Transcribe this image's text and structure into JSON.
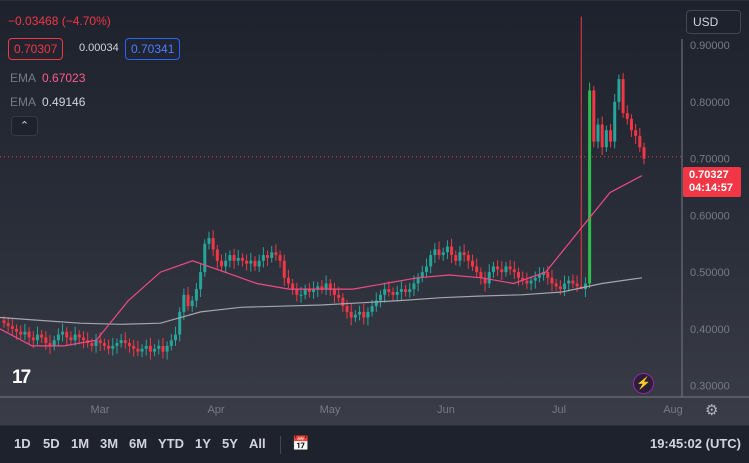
{
  "legend": {
    "change": "−0.03468 (−4.70%)",
    "bid": "0.70307",
    "spread": "0.00034",
    "ask": "0.70341",
    "ema1_label": "EMA",
    "ema1_value": "0.67023",
    "ema2_label": "EMA",
    "ema2_value": "0.49146",
    "collapse_icon": "chevron-up-icon"
  },
  "toolbar": {
    "currency": "USD",
    "ranges": [
      "1D",
      "5D",
      "1M",
      "3M",
      "6M",
      "YTD",
      "1Y",
      "5Y",
      "All"
    ],
    "date_range_icon": "calendar-arrows-icon",
    "clock": "19:45:02 (UTC)"
  },
  "price_badge": {
    "price": "0.70327",
    "countdown": "04:14:57"
  },
  "colors": {
    "up": "#26a69a",
    "up_bright": "#2ebd4e",
    "down": "#f23645",
    "ema_fast": "#f04a86",
    "ema_slow": "#a3a6af"
  },
  "chart_data": {
    "type": "candlestick",
    "yaxis_ticks": [
      "0.90000",
      "0.80000",
      "0.70000",
      "0.60000",
      "0.50000",
      "0.40000",
      "0.30000"
    ],
    "ylim": [
      0.28,
      0.96
    ],
    "xaxis_ticks": [
      "Mar",
      "Apr",
      "May",
      "Jun",
      "Jul",
      "Aug"
    ],
    "last_price": 0.70327,
    "closes": [
      0.41,
      0.405,
      0.4,
      0.395,
      0.39,
      0.395,
      0.385,
      0.38,
      0.39,
      0.385,
      0.375,
      0.37,
      0.38,
      0.39,
      0.395,
      0.385,
      0.38,
      0.39,
      0.385,
      0.38,
      0.375,
      0.37,
      0.38,
      0.375,
      0.37,
      0.365,
      0.37,
      0.375,
      0.38,
      0.375,
      0.37,
      0.365,
      0.36,
      0.365,
      0.37,
      0.36,
      0.365,
      0.37,
      0.36,
      0.37,
      0.38,
      0.39,
      0.43,
      0.46,
      0.44,
      0.45,
      0.47,
      0.5,
      0.55,
      0.56,
      0.54,
      0.52,
      0.51,
      0.52,
      0.53,
      0.52,
      0.525,
      0.52,
      0.515,
      0.52,
      0.51,
      0.52,
      0.53,
      0.525,
      0.535,
      0.53,
      0.52,
      0.49,
      0.48,
      0.47,
      0.46,
      0.46,
      0.47,
      0.465,
      0.47,
      0.475,
      0.47,
      0.48,
      0.47,
      0.46,
      0.455,
      0.44,
      0.43,
      0.42,
      0.425,
      0.43,
      0.42,
      0.43,
      0.44,
      0.45,
      0.46,
      0.47,
      0.465,
      0.46,
      0.465,
      0.47,
      0.465,
      0.47,
      0.48,
      0.49,
      0.5,
      0.51,
      0.53,
      0.54,
      0.53,
      0.535,
      0.545,
      0.53,
      0.52,
      0.535,
      0.53,
      0.52,
      0.51,
      0.5,
      0.49,
      0.48,
      0.5,
      0.51,
      0.505,
      0.5,
      0.51,
      0.505,
      0.5,
      0.49,
      0.485,
      0.48,
      0.485,
      0.49,
      0.495,
      0.5,
      0.49,
      0.48,
      0.475,
      0.47,
      0.48,
      0.485,
      0.48,
      0.475,
      0.47,
      0.48,
      0.82,
      0.73,
      0.76,
      0.72,
      0.75,
      0.73,
      0.8,
      0.84,
      0.78,
      0.77,
      0.75,
      0.74,
      0.72,
      0.7
    ],
    "ema_fast": [
      0.4,
      0.37,
      0.37,
      0.38,
      0.45,
      0.5,
      0.52,
      0.5,
      0.48,
      0.47,
      0.47,
      0.47,
      0.48,
      0.49,
      0.495,
      0.49,
      0.48,
      0.5,
      0.57,
      0.64,
      0.67
    ],
    "ema_slow": [
      0.42,
      0.415,
      0.41,
      0.408,
      0.41,
      0.43,
      0.438,
      0.44,
      0.442,
      0.446,
      0.45,
      0.455,
      0.458,
      0.46,
      0.465,
      0.48,
      0.49
    ]
  }
}
